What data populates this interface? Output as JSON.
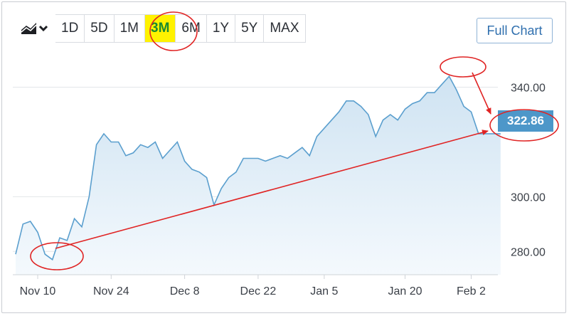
{
  "range_bar": {
    "chart_type_icon": "area-chart-dropdown-icon",
    "buttons": [
      "1D",
      "5D",
      "1M",
      "3M",
      "6M",
      "1Y",
      "5Y",
      "MAX"
    ],
    "active": "3M"
  },
  "full_chart_label": "Full Chart",
  "current_price": "322.86",
  "colors": {
    "line": "#5b9fce",
    "fill_top": "#cfe3f2",
    "fill_bottom": "#f4f9fd",
    "annotation": "#e02424",
    "price_tag": "#4d97c9",
    "active_bg": "#fff200",
    "active_text": "#1b8a2f"
  },
  "chart_data": {
    "type": "area",
    "y_ticks": [
      "340.00",
      "300.00",
      "280.00"
    ],
    "ylim": [
      271.5,
      349.5
    ],
    "x_ticks": [
      {
        "label": "Nov 10",
        "t": 3
      },
      {
        "label": "Nov 24",
        "t": 13
      },
      {
        "label": "Dec 8",
        "t": 23
      },
      {
        "label": "Dec 22",
        "t": 33
      },
      {
        "label": "Jan 5",
        "t": 42
      },
      {
        "label": "Jan 20",
        "t": 53
      },
      {
        "label": "Feb 2",
        "t": 62
      }
    ],
    "series": [
      {
        "t": [
          0,
          1,
          2,
          3,
          4,
          5,
          6,
          7,
          8,
          9,
          10,
          11,
          12,
          13,
          14,
          15,
          16,
          17,
          18,
          19,
          20,
          21,
          22,
          23,
          24,
          25,
          26,
          27,
          28,
          29,
          30,
          31,
          32,
          33,
          34,
          35,
          36,
          37,
          38,
          39,
          40,
          41,
          42,
          43,
          44,
          45,
          46,
          47,
          48,
          49,
          50,
          51,
          52,
          53,
          54,
          55,
          56,
          57,
          58,
          59,
          60,
          61,
          62,
          63,
          64,
          65,
          66
        ],
        "values": [
          279,
          290,
          291,
          287,
          279,
          277,
          285,
          284,
          292,
          289,
          300,
          319,
          323,
          320,
          320,
          315,
          316,
          319,
          318,
          320,
          314,
          317,
          320,
          313,
          310,
          309,
          307,
          297,
          303,
          307,
          309,
          314,
          314,
          314,
          313,
          314,
          315,
          314,
          316,
          318,
          315,
          322,
          325,
          328,
          331,
          335,
          335,
          333,
          330,
          322,
          328,
          330,
          328,
          332,
          334,
          335,
          338,
          338,
          341,
          344,
          339,
          333,
          331,
          323,
          323,
          323,
          323
        ]
      }
    ],
    "annotations": [
      {
        "type": "ellipse",
        "label": "3M button highlight"
      },
      {
        "type": "ellipse",
        "label": "Nov low"
      },
      {
        "type": "ellipse",
        "label": "Feb peak"
      },
      {
        "type": "ellipse",
        "label": "current price"
      },
      {
        "type": "arrow",
        "from": "Nov low",
        "to": "current price"
      },
      {
        "type": "arrow",
        "from": "Feb peak",
        "to": "current price"
      }
    ]
  }
}
